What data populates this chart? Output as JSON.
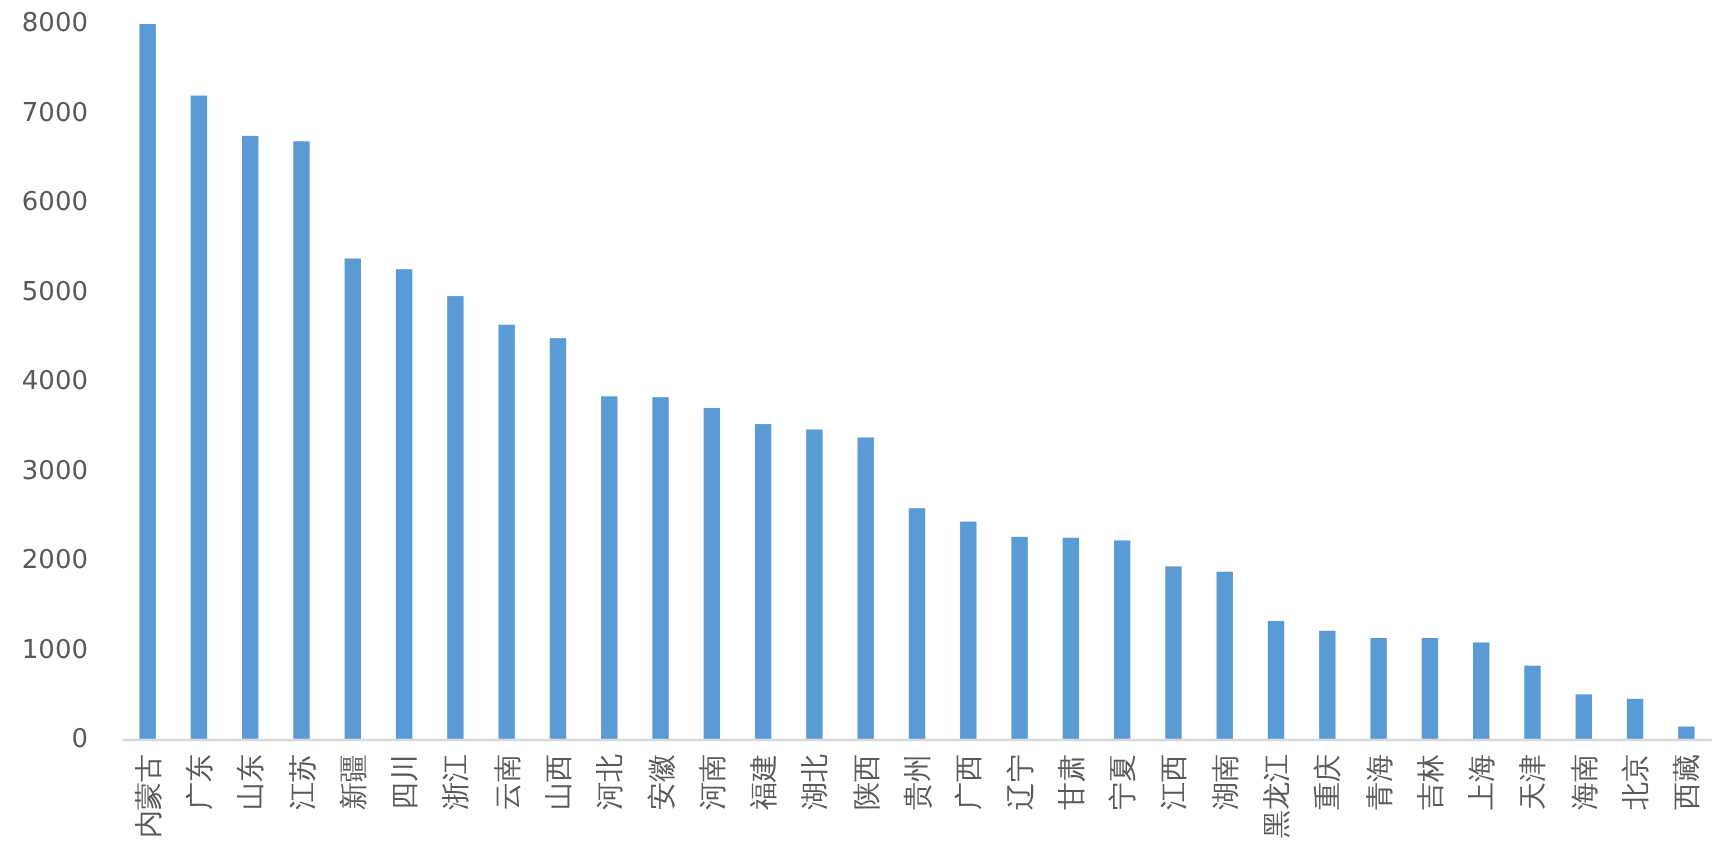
{
  "chart_data": {
    "type": "bar",
    "categories": [
      "内蒙古",
      "广东",
      "山东",
      "江苏",
      "新疆",
      "四川",
      "浙江",
      "云南",
      "山西",
      "河北",
      "安徽",
      "河南",
      "福建",
      "湖北",
      "陕西",
      "贵州",
      "广西",
      "辽宁",
      "甘肃",
      "宁夏",
      "江西",
      "湖南",
      "黑龙江",
      "重庆",
      "青海",
      "吉林",
      "上海",
      "天津",
      "海南",
      "北京",
      "西藏"
    ],
    "values": [
      8000,
      7200,
      6750,
      6690,
      5380,
      5260,
      4960,
      4640,
      4490,
      3840,
      3830,
      3710,
      3530,
      3470,
      3380,
      2590,
      2440,
      2270,
      2260,
      2230,
      1940,
      1880,
      1330,
      1220,
      1140,
      1140,
      1090,
      830,
      510,
      460,
      150
    ],
    "color": "#5b9bd5",
    "ylim": [
      0,
      8000
    ],
    "yticks": [
      0,
      1000,
      2000,
      3000,
      4000,
      5000,
      6000,
      7000,
      8000
    ]
  }
}
